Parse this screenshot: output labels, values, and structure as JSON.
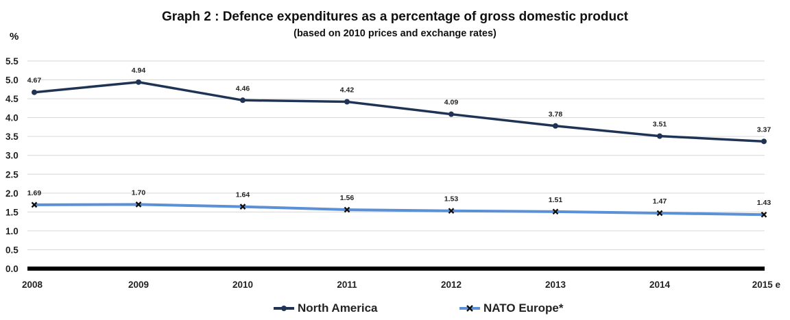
{
  "chart_data": {
    "type": "line",
    "title": "Graph 2 : Defence expenditures as a percentage of gross domestic product",
    "subtitle": "(based on 2010 prices and exchange rates)",
    "ylabel": "%",
    "xlabel": "",
    "x": [
      "2008",
      "2009",
      "2010",
      "2011",
      "2012",
      "2013",
      "2014",
      "2015 e"
    ],
    "yticks": [
      "0.0",
      "0.5",
      "1.0",
      "1.5",
      "2.0",
      "2.5",
      "3.0",
      "3.5",
      "4.0",
      "4.5",
      "5.0",
      "5.5"
    ],
    "ylim": [
      0,
      5.5
    ],
    "grid": true,
    "legend_position": "bottom",
    "series": [
      {
        "name": "North America",
        "values": [
          4.67,
          4.94,
          4.46,
          4.42,
          4.09,
          3.78,
          3.51,
          3.37
        ],
        "labels": [
          "4.67",
          "4.94",
          "4.46",
          "4.42",
          "4.09",
          "3.78",
          "3.51",
          "3.37"
        ],
        "color": "#1f3354",
        "marker": "circle"
      },
      {
        "name": "NATO Europe*",
        "values": [
          1.69,
          1.7,
          1.64,
          1.56,
          1.53,
          1.51,
          1.47,
          1.43
        ],
        "labels": [
          "1.69",
          "1.70",
          "1.64",
          "1.56",
          "1.53",
          "1.51",
          "1.47",
          "1.43"
        ],
        "color": "#5b8fd6",
        "marker": "x"
      }
    ]
  }
}
